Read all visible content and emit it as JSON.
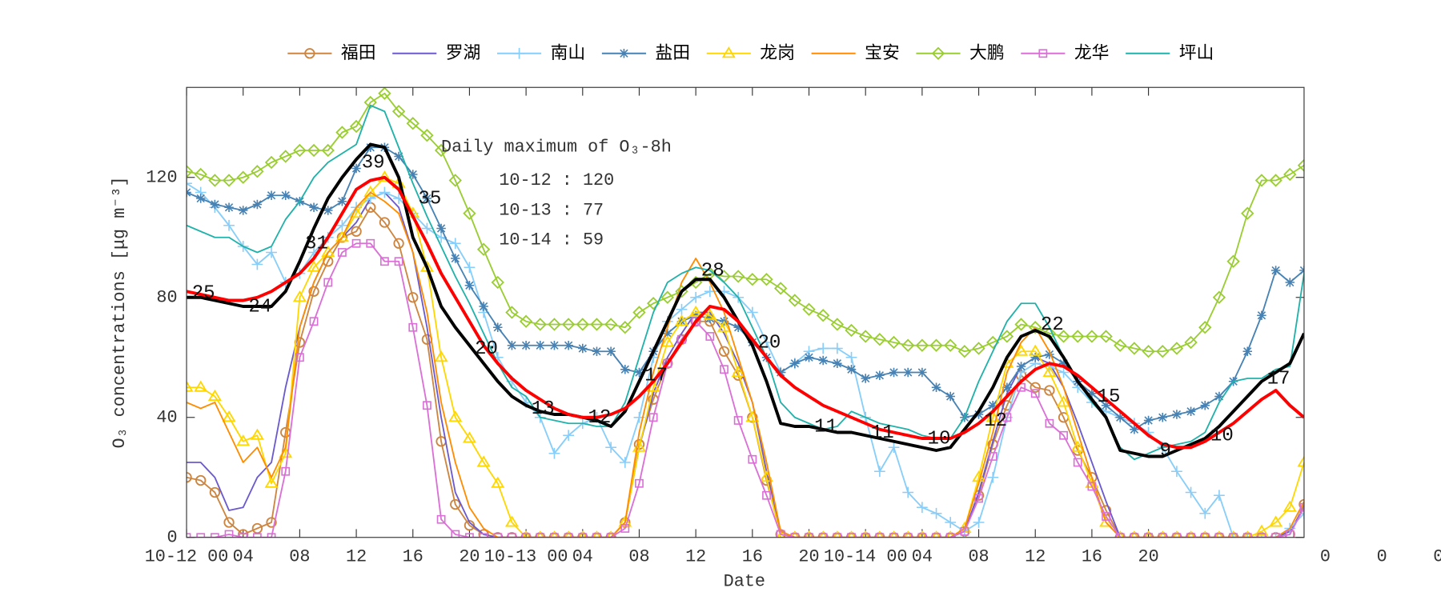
{
  "chart_data": {
    "type": "line",
    "xlabel": "Date",
    "ylabel": "O₃ concentrations [μg m⁻³]",
    "x": [
      0,
      1,
      2,
      3,
      4,
      5,
      6,
      7,
      8,
      9,
      10,
      11,
      12,
      13,
      14,
      15,
      16,
      17,
      18,
      19,
      20,
      21,
      22,
      23,
      24,
      25,
      26,
      27,
      28,
      29,
      30,
      31,
      32,
      33,
      34,
      35,
      36,
      37,
      38,
      39,
      40,
      41,
      42,
      43,
      44,
      45,
      46,
      47,
      48,
      49,
      50,
      51,
      52,
      53,
      54,
      55,
      56,
      57,
      58,
      59,
      60,
      61,
      62,
      63,
      64,
      65,
      66,
      67,
      68,
      69,
      70,
      71,
      72,
      73,
      74,
      75,
      76,
      77,
      78,
      79
    ],
    "xlim": [
      0,
      79
    ],
    "xticks": [
      {
        "value": 0,
        "label": "10-12 00"
      },
      {
        "value": 4,
        "label": "04"
      },
      {
        "value": 8,
        "label": "08"
      },
      12,
      16,
      20,
      {
        "value": 24,
        "label": "10-13 00"
      },
      {
        "value": 28,
        "label": "04"
      },
      {
        "value": 32,
        "label": "08"
      },
      {
        "value": 36,
        "label": "12"
      },
      {
        "value": 40,
        "label": "16"
      },
      {
        "value": 44,
        "label": "20"
      },
      {
        "value": 48,
        "label": "10-14 00"
      },
      {
        "value": 52,
        "label": "04"
      },
      {
        "value": 56,
        "label": "08"
      },
      {
        "value": 60,
        "label": "12"
      },
      {
        "value": 64,
        "label": "16"
      },
      {
        "value": 68,
        "label": "20"
      },
      {
        "value": 80.5,
        "label": "0"
      },
      {
        "value": 84.5,
        "label": "0"
      },
      {
        "value": 88.5,
        "label": "0"
      }
    ],
    "ylim": [
      0,
      150
    ],
    "yticks": [
      0,
      40,
      80,
      120
    ],
    "legend": "top",
    "series": [
      {
        "name": "福田",
        "color": "#cd853f",
        "marker": "circle",
        "values": [
          20,
          19,
          15,
          5,
          1,
          3,
          5,
          35,
          65,
          82,
          92,
          100,
          102,
          110,
          105,
          98,
          80,
          66,
          32,
          11,
          4,
          1,
          0,
          0,
          0,
          0,
          0,
          0,
          0,
          0,
          0,
          5,
          31,
          46,
          58,
          66,
          72,
          72,
          62,
          54,
          40,
          19,
          1,
          0,
          0,
          0,
          0,
          0,
          0,
          0,
          0,
          0,
          0,
          0,
          0,
          2,
          14,
          31,
          44,
          54,
          50,
          49,
          40,
          29,
          20,
          9,
          0,
          0,
          0,
          0,
          0,
          0,
          0,
          0,
          0,
          0,
          0,
          0,
          1,
          11
        ]
      },
      {
        "name": "罗湖",
        "color": "#6a5acd",
        "marker": "none",
        "values": [
          25,
          25,
          20,
          9,
          10,
          20,
          25,
          50,
          70,
          85,
          95,
          100,
          105,
          113,
          115,
          110,
          95,
          70,
          40,
          15,
          5,
          1,
          0,
          0,
          0,
          0,
          0,
          0,
          0,
          0,
          0,
          5,
          30,
          48,
          60,
          68,
          75,
          75,
          68,
          58,
          45,
          22,
          2,
          0,
          0,
          0,
          0,
          0,
          0,
          0,
          0,
          0,
          0,
          0,
          0,
          2,
          15,
          32,
          48,
          57,
          60,
          58,
          50,
          38,
          25,
          12,
          0,
          0,
          0,
          0,
          0,
          0,
          0,
          0,
          0,
          0,
          0,
          0,
          2,
          10
        ]
      },
      {
        "name": "南山",
        "color": "#87cefa",
        "marker": "plus",
        "values": [
          118,
          115,
          110,
          104,
          97,
          91,
          95,
          85,
          88,
          95,
          100,
          104,
          110,
          113,
          115,
          113,
          108,
          103,
          100,
          98,
          90,
          75,
          60,
          52,
          45,
          40,
          28,
          34,
          38,
          40,
          30,
          25,
          40,
          60,
          72,
          76,
          80,
          82,
          82,
          80,
          75,
          65,
          55,
          58,
          62,
          63,
          63,
          60,
          40,
          22,
          30,
          15,
          10,
          8,
          5,
          2,
          5,
          20,
          40,
          55,
          58,
          57,
          55,
          50,
          45,
          42,
          40,
          38,
          35,
          30,
          22,
          15,
          8,
          14,
          0,
          0,
          0,
          0,
          3,
          8
        ]
      },
      {
        "name": "盐田",
        "color": "#4682b4",
        "marker": "star",
        "values": [
          115,
          113,
          111,
          110,
          109,
          111,
          114,
          114,
          112,
          110,
          109,
          112,
          123,
          130,
          130,
          127,
          121,
          113,
          103,
          93,
          84,
          77,
          70,
          64,
          64,
          64,
          64,
          64,
          63,
          62,
          62,
          56,
          55,
          62,
          68,
          72,
          74,
          73,
          72,
          70,
          65,
          60,
          55,
          58,
          60,
          59,
          58,
          56,
          53,
          54,
          55,
          55,
          55,
          50,
          47,
          40,
          41,
          44,
          50,
          57,
          60,
          61,
          58,
          52,
          48,
          44,
          40,
          36,
          39,
          40,
          41,
          42,
          44,
          47,
          52,
          62,
          74,
          89,
          85,
          89
        ]
      },
      {
        "name": "龙岗",
        "color": "#ffd700",
        "marker": "triangle",
        "values": [
          50,
          50,
          47,
          40,
          32,
          34,
          18,
          28,
          80,
          90,
          95,
          100,
          108,
          115,
          120,
          118,
          108,
          90,
          60,
          40,
          33,
          25,
          18,
          5,
          0,
          0,
          0,
          0,
          0,
          0,
          0,
          5,
          30,
          50,
          65,
          72,
          75,
          74,
          70,
          55,
          40,
          20,
          0,
          0,
          0,
          0,
          0,
          0,
          0,
          0,
          0,
          0,
          0,
          0,
          0,
          3,
          20,
          40,
          58,
          62,
          62,
          55,
          45,
          30,
          18,
          5,
          0,
          0,
          0,
          0,
          0,
          0,
          0,
          0,
          0,
          0,
          2,
          5,
          10,
          25
        ]
      },
      {
        "name": "宝安",
        "color": "#ff8c00",
        "marker": "none",
        "values": [
          45,
          43,
          45,
          35,
          25,
          30,
          20,
          30,
          70,
          85,
          95,
          100,
          110,
          115,
          112,
          108,
          95,
          75,
          45,
          25,
          10,
          3,
          0,
          0,
          0,
          0,
          0,
          0,
          0,
          0,
          0,
          5,
          35,
          55,
          70,
          85,
          93,
          85,
          75,
          60,
          45,
          25,
          2,
          0,
          0,
          0,
          0,
          0,
          0,
          0,
          0,
          0,
          0,
          0,
          0,
          3,
          18,
          35,
          55,
          65,
          70,
          62,
          50,
          35,
          20,
          5,
          0,
          0,
          0,
          0,
          0,
          0,
          0,
          0,
          0,
          0,
          0,
          0,
          3,
          12
        ]
      },
      {
        "name": "大鹏",
        "color": "#9acd32",
        "marker": "diamond",
        "values": [
          122,
          121,
          119,
          119,
          120,
          122,
          125,
          127,
          129,
          129,
          129,
          135,
          137,
          145,
          148,
          142,
          138,
          134,
          129,
          119,
          108,
          96,
          85,
          75,
          72,
          71,
          71,
          71,
          71,
          71,
          71,
          70,
          75,
          78,
          80,
          82,
          85,
          88,
          87,
          87,
          86,
          86,
          83,
          79,
          76,
          74,
          71,
          69,
          67,
          66,
          65,
          64,
          64,
          64,
          64,
          62,
          63,
          65,
          67,
          71,
          70,
          68,
          67,
          67,
          67,
          67,
          64,
          63,
          62,
          62,
          63,
          65,
          70,
          80,
          92,
          108,
          119,
          119,
          121,
          124
        ]
      },
      {
        "name": "龙华",
        "color": "#da70d6",
        "marker": "square",
        "values": [
          0,
          0,
          0,
          1,
          0,
          0,
          0,
          22,
          60,
          72,
          85,
          95,
          98,
          98,
          92,
          92,
          70,
          44,
          6,
          1,
          0,
          0,
          0,
          0,
          0,
          0,
          0,
          0,
          0,
          0,
          0,
          3,
          18,
          40,
          58,
          66,
          72,
          67,
          56,
          39,
          26,
          14,
          1,
          0,
          0,
          0,
          0,
          0,
          0,
          0,
          0,
          0,
          0,
          0,
          0,
          2,
          13,
          27,
          40,
          50,
          48,
          38,
          34,
          25,
          17,
          7,
          0,
          0,
          0,
          0,
          0,
          0,
          0,
          0,
          0,
          0,
          0,
          0,
          1,
          10
        ]
      },
      {
        "name": "坪山",
        "color": "#20b2aa",
        "marker": "none",
        "values": [
          104,
          102,
          100,
          100,
          97,
          95,
          97,
          106,
          112,
          120,
          125,
          128,
          131,
          144,
          142,
          130,
          118,
          107,
          97,
          87,
          78,
          68,
          58,
          50,
          47,
          40,
          39,
          38,
          38,
          37,
          37,
          45,
          60,
          75,
          85,
          88,
          90,
          89,
          85,
          80,
          70,
          60,
          45,
          40,
          38,
          36,
          37,
          42,
          40,
          38,
          37,
          36,
          34,
          33,
          33,
          40,
          52,
          62,
          72,
          78,
          78,
          70,
          60,
          52,
          45,
          40,
          30,
          26,
          28,
          30,
          31,
          32,
          35,
          45,
          52,
          53,
          53,
          56,
          57,
          88
        ]
      }
    ],
    "reference_lines": [
      {
        "color": "#000000",
        "values": [
          80,
          80,
          79,
          78,
          77,
          77,
          77,
          82,
          92,
          103,
          113,
          120,
          126,
          131,
          130,
          120,
          100,
          90,
          77,
          70,
          64,
          58,
          52,
          47,
          44,
          42,
          41,
          41,
          40,
          39,
          37,
          42,
          52,
          62,
          72,
          82,
          86,
          86,
          80,
          72,
          64,
          52,
          38,
          37,
          37,
          36,
          35,
          35,
          34,
          33,
          32,
          31,
          30,
          29,
          30,
          36,
          42,
          50,
          60,
          67,
          69,
          67,
          60,
          52,
          46,
          40,
          29,
          28,
          27,
          27,
          29,
          31,
          33,
          37,
          42,
          47,
          52,
          55,
          58,
          68
        ]
      },
      {
        "color": "#ff0000",
        "values": [
          82,
          81,
          80,
          79,
          79,
          80,
          82,
          85,
          88,
          93,
          100,
          108,
          116,
          119,
          120,
          116,
          107,
          98,
          88,
          80,
          72,
          64,
          58,
          53,
          49,
          46,
          43,
          41,
          40,
          40,
          41,
          43,
          47,
          52,
          58,
          65,
          72,
          77,
          76,
          72,
          66,
          60,
          54,
          50,
          47,
          44,
          42,
          40,
          38,
          36,
          35,
          34,
          33,
          33,
          33,
          35,
          38,
          42,
          47,
          52,
          56,
          58,
          57,
          54,
          50,
          46,
          42,
          38,
          34,
          31,
          30,
          30,
          32,
          35,
          38,
          42,
          46,
          49,
          44,
          40
        ]
      }
    ],
    "point_labels": [
      {
        "label": "25",
        "x": 1,
        "y": 81.5
      },
      {
        "label": "24",
        "x": 5,
        "y": 77
      },
      {
        "label": "31",
        "x": 9,
        "y": 98
      },
      {
        "label": "39",
        "x": 13,
        "y": 125
      },
      {
        "label": "35",
        "x": 17,
        "y": 113
      },
      {
        "label": "20",
        "x": 21,
        "y": 63
      },
      {
        "label": "13",
        "x": 25,
        "y": 43
      },
      {
        "label": "12",
        "x": 29,
        "y": 40
      },
      {
        "label": "17",
        "x": 33,
        "y": 54
      },
      {
        "label": "28",
        "x": 37,
        "y": 89
      },
      {
        "label": "20",
        "x": 41,
        "y": 65
      },
      {
        "label": "11",
        "x": 45,
        "y": 37
      },
      {
        "label": "11",
        "x": 49,
        "y": 35
      },
      {
        "label": "10",
        "x": 53,
        "y": 33
      },
      {
        "label": "12",
        "x": 57,
        "y": 39
      },
      {
        "label": "22",
        "x": 61,
        "y": 71
      },
      {
        "label": "15",
        "x": 65,
        "y": 47
      },
      {
        "label": "9",
        "x": 69,
        "y": 29
      },
      {
        "label": "10",
        "x": 73,
        "y": 34
      },
      {
        "label": "17",
        "x": 77,
        "y": 53
      }
    ],
    "annotation": {
      "title": "Daily maximum of O₃-8h",
      "lines": [
        "10-12 : 120",
        "10-13 : 77",
        "10-14 : 59"
      ]
    }
  }
}
